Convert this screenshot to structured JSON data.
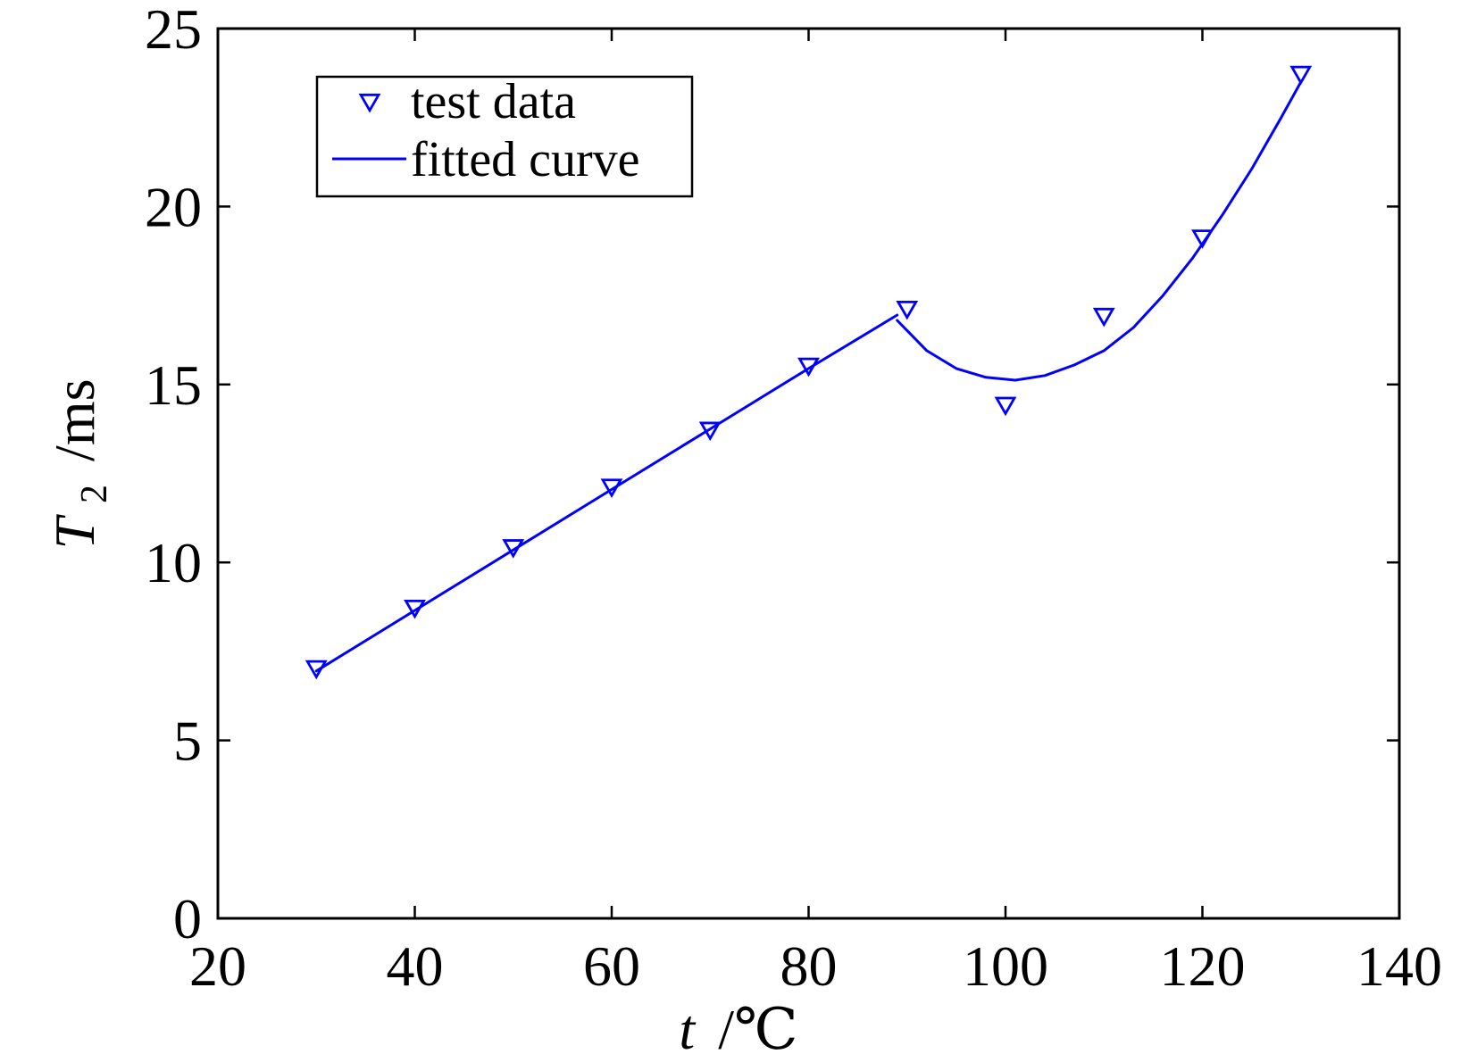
{
  "chart_data": {
    "type": "line",
    "xlabel_var": "t",
    "xlabel_unit": "/℃",
    "ylabel_var": "T",
    "ylabel_sub": "2",
    "ylabel_unit": "/ms",
    "xlim": [
      20,
      140
    ],
    "ylim": [
      0,
      25
    ],
    "xticks": [
      20,
      40,
      60,
      80,
      100,
      120,
      140
    ],
    "yticks": [
      0,
      5,
      10,
      15,
      20,
      25
    ],
    "grid": false,
    "legend_position": "top-left",
    "series": [
      {
        "name": "test data",
        "kind": "scatter",
        "marker": "triangle-down",
        "color": "#0000ff",
        "x": [
          30,
          40,
          50,
          60,
          70,
          80,
          90,
          100,
          110,
          120,
          130
        ],
        "y": [
          7.0,
          8.7,
          10.4,
          12.1,
          13.7,
          15.5,
          17.1,
          14.4,
          16.9,
          19.1,
          23.7
        ]
      },
      {
        "name": "fitted curve",
        "kind": "line",
        "color": "#0000ff",
        "segments": [
          {
            "x": [
              30,
              40,
              50,
              60,
              70,
              80,
              89
            ],
            "y": [
              6.95,
              8.65,
              10.35,
              12.05,
              13.75,
              15.45,
              16.95
            ]
          },
          {
            "x": [
              89,
              92,
              95,
              98,
              101,
              104,
              107,
              110,
              113,
              116,
              119,
              122,
              125,
              128,
              130
            ],
            "y": [
              16.8,
              15.95,
              15.45,
              15.2,
              15.12,
              15.25,
              15.55,
              15.95,
              16.6,
              17.5,
              18.55,
              19.75,
              21.05,
              22.5,
              23.5
            ]
          }
        ]
      }
    ]
  }
}
